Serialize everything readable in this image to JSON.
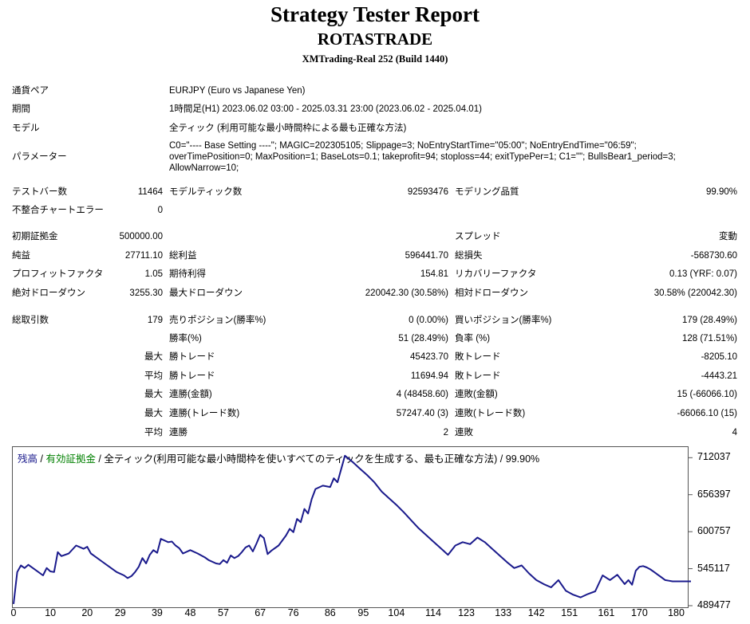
{
  "header": {
    "title": "Strategy Tester Report",
    "subtitle": "ROTASTRADE",
    "server": "XMTrading-Real 252 (Build 1440)"
  },
  "info": {
    "symbol_label": "通貨ペア",
    "symbol_value": "EURJPY (Euro vs Japanese Yen)",
    "period_label": "期間",
    "period_value": "1時間足(H1) 2023.06.02 03:00 - 2025.03.31 23:00 (2023.06.02 - 2025.04.01)",
    "model_label": "モデル",
    "model_value": "全ティック (利用可能な最小時間枠による最も正確な方法)",
    "params_label": "パラメーター",
    "params_lines": [
      "C0=\"---- Base Setting ----\"; MAGIC=202305105; Slippage=3; NoEntryStartTime=\"05:00\"; NoEntryEndTime=\"06:59\";",
      "overTimePosition=0; MaxPosition=1; BaseLots=0.1; takeprofit=94; stoploss=44; exitTypePer=1; C1=\"\"; BullsBear1_period=3;",
      "AllowNarrow=10;"
    ]
  },
  "stats": {
    "bars_label": "テストバー数",
    "bars_value": "11464",
    "ticks_label": "モデルティック数",
    "ticks_value": "92593476",
    "quality_label": "モデリング品質",
    "quality_value": "99.90%",
    "mismatch_label": "不整合チャートエラー",
    "mismatch_value": "0",
    "deposit_label": "初期証拠金",
    "deposit_value": "500000.00",
    "spread_label": "スプレッド",
    "spread_value": "変動",
    "net_label": "純益",
    "net_value": "27711.10",
    "gross_profit_label": "総利益",
    "gross_profit_value": "596441.70",
    "gross_loss_label": "総損失",
    "gross_loss_value": "-568730.60",
    "pf_label": "プロフィットファクタ",
    "pf_value": "1.05",
    "expected_label": "期待利得",
    "expected_value": "154.81",
    "recovery_label": "リカバリーファクタ",
    "recovery_value": "0.13 (YRF: 0.07)",
    "abs_dd_label": "絶対ドローダウン",
    "abs_dd_value": "3255.30",
    "max_dd_label": "最大ドローダウン",
    "max_dd_value": "220042.30 (30.58%)",
    "rel_dd_label": "相対ドローダウン",
    "rel_dd_value": "30.58% (220042.30)",
    "trades_label": "総取引数",
    "trades_value": "179",
    "short_label": "売りポジション(勝率%)",
    "short_value": "0 (0.00%)",
    "long_label": "買いポジション(勝率%)",
    "long_value": "179 (28.49%)",
    "win_rate_label": "勝率(%)",
    "win_rate_value": "51 (28.49%)",
    "loss_rate_label": "負率 (%)",
    "loss_rate_value": "128 (71.51%)",
    "max_label": "最大",
    "avg_label": "平均",
    "largest_win_label": "勝トレード",
    "largest_win_value": "45423.70",
    "largest_loss_label": "敗トレード",
    "largest_loss_value": "-8205.10",
    "avg_win_label": "勝トレード",
    "avg_win_value": "11694.94",
    "avg_loss_label": "敗トレード",
    "avg_loss_value": "-4443.21",
    "max_cons_win_amt_label": "連勝(金額)",
    "max_cons_win_amt_value": "4 (48458.60)",
    "max_cons_loss_amt_label": "連敗(金額)",
    "max_cons_loss_amt_value": "15 (-66066.10)",
    "max_cons_win_cnt_label": "連勝(トレード数)",
    "max_cons_win_cnt_value": "57247.40 (3)",
    "max_cons_loss_cnt_label": "連敗(トレード数)",
    "max_cons_loss_cnt_value": "-66066.10 (15)",
    "avg_cons_win_label": "連勝",
    "avg_cons_win_value": "2",
    "avg_cons_loss_label": "連敗",
    "avg_cons_loss_value": "4"
  },
  "chart_legend": {
    "balance": "残高",
    "sep1": " / ",
    "equity": "有効証拠金",
    "rest": " / 全ティック(利用可能な最小時間枠を使いすべてのティックを生成する、最も正確な方法) / 99.90%",
    "balance_color": "#1a1a8c",
    "equity_color": "#008000"
  },
  "chart_data": {
    "type": "line",
    "series": [
      {
        "name": "残高",
        "color": "#1a1a8c",
        "x": [
          0,
          1,
          2,
          3,
          4,
          6,
          8,
          9,
          10,
          11,
          12,
          13,
          15,
          16,
          17,
          19,
          20,
          21,
          22,
          24,
          26,
          28,
          30,
          31,
          32,
          33,
          34,
          35,
          36,
          37,
          38,
          39,
          40,
          42,
          43,
          44,
          45,
          46,
          48,
          50,
          52,
          53,
          55,
          56,
          57,
          58,
          59,
          60,
          61,
          62,
          63,
          64,
          65,
          66,
          67,
          68,
          69,
          70,
          72,
          74,
          75,
          76,
          77,
          78,
          79,
          80,
          81,
          82,
          84,
          86,
          87,
          88,
          90,
          92,
          94,
          96,
          98,
          100,
          102,
          104,
          106,
          108,
          110,
          112,
          114,
          116,
          118,
          120,
          122,
          124,
          126,
          128,
          130,
          132,
          134,
          136,
          138,
          140,
          142,
          144,
          146,
          148,
          150,
          152,
          154,
          156,
          158,
          160,
          162,
          164,
          165,
          166,
          167,
          168,
          169,
          170,
          171,
          172,
          173,
          174,
          175,
          176,
          177,
          178,
          179,
          180,
          182,
          183,
          184
        ],
        "y": [
          492000,
          540000,
          550000,
          546000,
          551000,
          543000,
          535000,
          546000,
          541000,
          540000,
          570000,
          564000,
          568000,
          574000,
          580000,
          575000,
          578000,
          568000,
          564000,
          556000,
          548000,
          540000,
          535000,
          531000,
          534000,
          540000,
          548000,
          561000,
          553000,
          566000,
          573000,
          569000,
          590000,
          585000,
          586000,
          580000,
          576000,
          568000,
          573000,
          568000,
          562000,
          558000,
          553000,
          552000,
          558000,
          554000,
          565000,
          561000,
          564000,
          570000,
          577000,
          580000,
          571000,
          583000,
          596000,
          591000,
          567000,
          572000,
          580000,
          595000,
          605000,
          600000,
          620000,
          615000,
          635000,
          628000,
          650000,
          665000,
          670000,
          668000,
          681000,
          675000,
          715000,
          706000,
          696000,
          686000,
          675000,
          661000,
          651000,
          641000,
          630000,
          618000,
          606000,
          596000,
          586000,
          576000,
          566000,
          580000,
          585000,
          582000,
          592000,
          585000,
          575000,
          565000,
          555000,
          546000,
          550000,
          538000,
          528000,
          522000,
          517000,
          528000,
          512000,
          506000,
          502000,
          507000,
          511000,
          535000,
          528000,
          536000,
          529000,
          522000,
          528000,
          521000,
          542000,
          548000,
          549000,
          547000,
          544000,
          540000,
          536000,
          532000,
          528000,
          527000,
          526000,
          526000,
          526000,
          526000,
          526000
        ]
      }
    ],
    "y_ticks": [
      "712037",
      "656397",
      "600757",
      "545117",
      "489477"
    ],
    "x_ticks": [
      "0",
      "10",
      "20",
      "29",
      "39",
      "48",
      "57",
      "67",
      "76",
      "86",
      "95",
      "104",
      "114",
      "123",
      "133",
      "142",
      "151",
      "161",
      "170",
      "180"
    ],
    "ylim": [
      489477,
      722000
    ],
    "xlim": [
      0,
      184
    ]
  }
}
